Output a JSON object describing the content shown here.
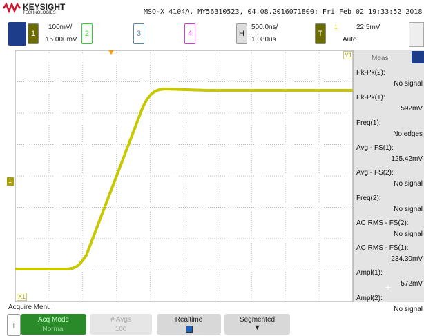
{
  "header": {
    "brand": "KEYSIGHT",
    "brand_sub": "TECHNOLOGIES",
    "instrument": "MSO-X 4104A, MY56310523, 04.08.2016071800: Fri Feb 02 19:33:52 2018"
  },
  "channels": [
    {
      "label": "1",
      "scale": "100mV/",
      "offset": "15.000mV"
    },
    {
      "label": "2"
    },
    {
      "label": "3"
    },
    {
      "label": "4"
    }
  ],
  "horizontal": {
    "label": "H",
    "scale": "500.0ns/",
    "delay": "1.080us"
  },
  "trigger": {
    "label": "T",
    "source": "1",
    "level": "22.5mV",
    "mode": "Auto"
  },
  "markers": {
    "y1": "Y1",
    "x1": "X1",
    "ground": "1"
  },
  "measurements": {
    "title": "Meas",
    "items": [
      {
        "label": "Pk-Pk(2):",
        "value": "No signal"
      },
      {
        "label": "Pk-Pk(1):",
        "value": "592mV"
      },
      {
        "label": "Freq(1):",
        "value": "No edges"
      },
      {
        "label": "Avg - FS(1):",
        "value": "125.42mV"
      },
      {
        "label": "Avg - FS(2):",
        "value": "No signal"
      },
      {
        "label": "Freq(2):",
        "value": "No signal"
      },
      {
        "label": "AC RMS - FS(2):",
        "value": "No signal"
      },
      {
        "label": "AC RMS - FS(1):",
        "value": "234.30mV"
      },
      {
        "label": "Ampl(1):",
        "value": "572mV"
      },
      {
        "label": "Ampl(2):",
        "value": "No signal"
      }
    ]
  },
  "menu": {
    "title": "Acquire Menu",
    "buttons": [
      {
        "label": "Acq Mode",
        "value": "Normal"
      },
      {
        "label": "# Avgs",
        "value": "100"
      },
      {
        "label": "Realtime"
      },
      {
        "label": "Segmented"
      }
    ]
  }
}
